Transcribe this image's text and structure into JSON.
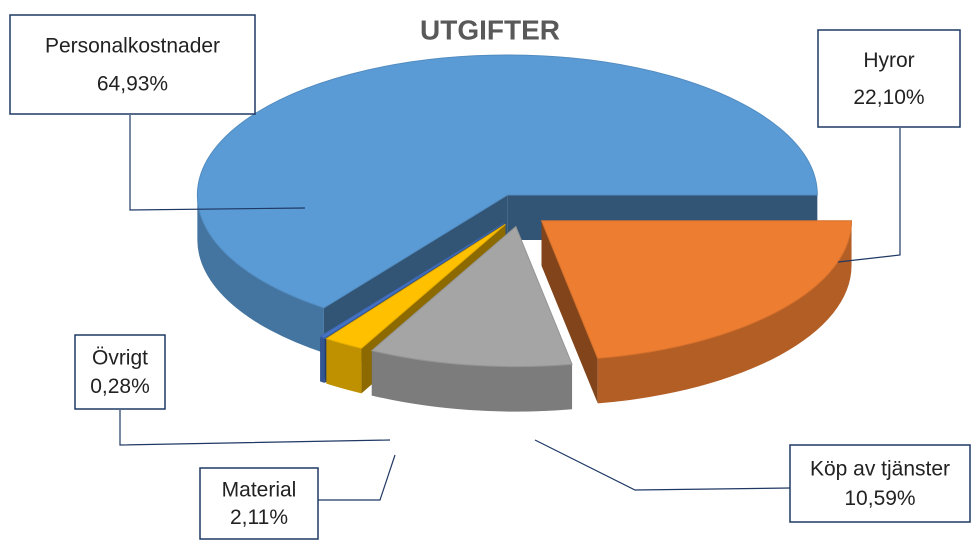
{
  "chart_data": {
    "type": "pie",
    "title": "UTGIFTER",
    "categories": [
      "Personalkostnader",
      "Hyror",
      "Köp av tjänster",
      "Material",
      "Övrigt"
    ],
    "values": [
      64.93,
      22.1,
      10.59,
      2.11,
      0.28
    ],
    "value_labels": [
      "64,93%",
      "22,10%",
      "10,59%",
      "2,11%",
      "0,28%"
    ],
    "colors": [
      "#5b9bd5",
      "#ed7d31",
      "#a5a5a5",
      "#ffc000",
      "#4472c4"
    ]
  }
}
